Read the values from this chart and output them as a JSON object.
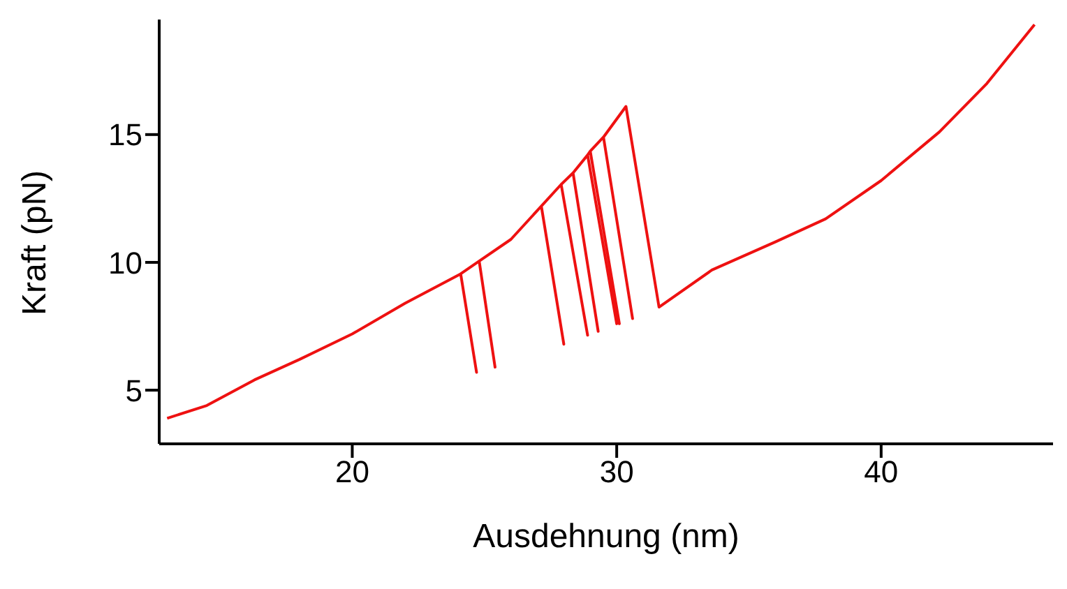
{
  "chart_data": {
    "type": "line",
    "xlabel": "Ausdehnung (nm)",
    "ylabel": "Kraft (pN)",
    "series": [
      {
        "color": "#ee1111",
        "x": [
          13,
          14.5,
          16.3,
          18,
          20,
          22,
          24.1,
          24.7,
          24.1,
          24.8,
          25.4,
          24.8,
          26,
          27.15,
          28,
          27.15,
          27.9,
          28.9,
          27.9,
          28.35,
          29.3,
          28.35,
          28.9,
          30,
          28.9,
          29,
          30.1,
          29,
          29.5,
          30.6,
          29.5,
          30.35,
          31.6,
          33.6,
          36,
          37.9,
          40,
          42.2,
          44,
          45.8
        ],
        "values": [
          3.9,
          4.4,
          5.4,
          6.2,
          7.2,
          8.4,
          9.55,
          5.7,
          9.55,
          10.05,
          5.9,
          10.05,
          10.9,
          12.2,
          6.8,
          12.2,
          13.05,
          7.15,
          13.05,
          13.5,
          7.3,
          13.5,
          14.2,
          7.6,
          14.2,
          14.35,
          7.6,
          14.35,
          14.9,
          7.8,
          14.9,
          16.1,
          8.25,
          9.7,
          10.8,
          11.7,
          13.2,
          15.1,
          17,
          19.3
        ]
      }
    ],
    "xlim": [
      12.7,
      46.5
    ],
    "ylim": [
      2.9,
      19.5
    ],
    "xticks": [
      20,
      30,
      40
    ],
    "yticks": [
      5,
      10,
      15
    ],
    "grid": false,
    "legend": false,
    "marker": "none",
    "line_style": "solid"
  }
}
